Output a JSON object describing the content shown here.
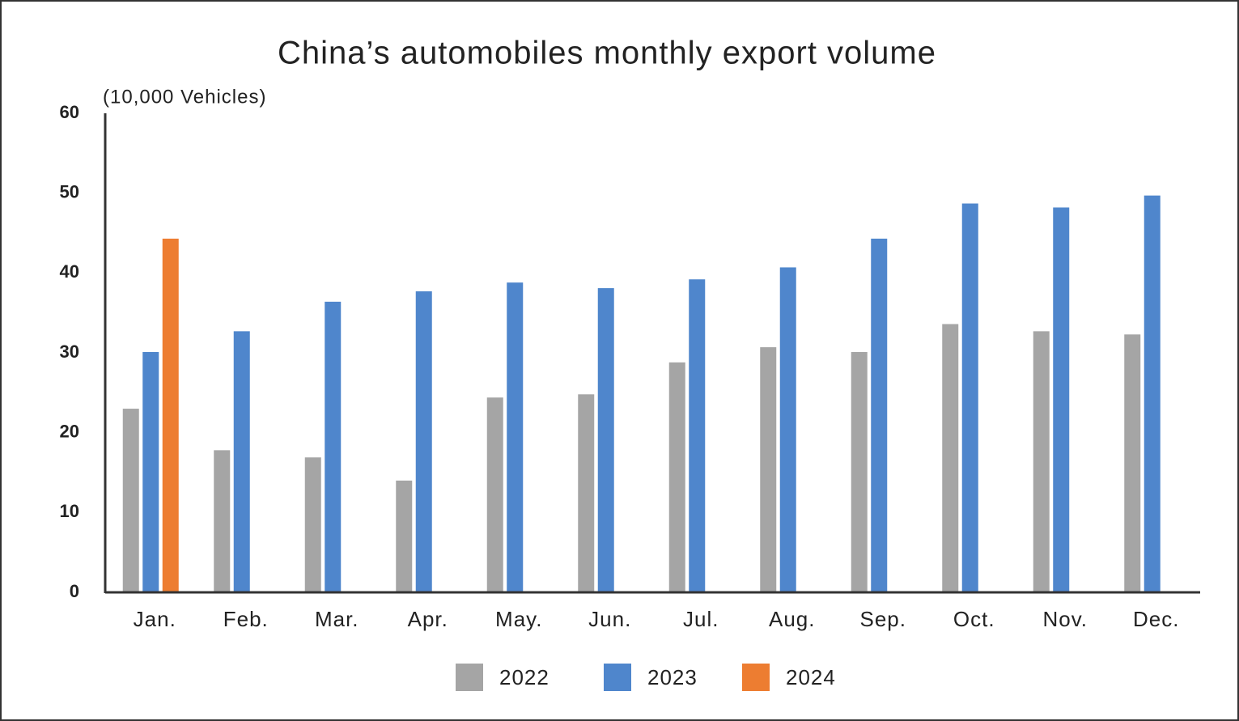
{
  "chart_data": {
    "type": "bar",
    "title": "China’s automobiles monthly export volume",
    "y_label": "(10,000 Vehicles)",
    "categories": [
      "Jan.",
      "Feb.",
      "Mar.",
      "Apr.",
      "May.",
      "Jun.",
      "Jul.",
      "Aug.",
      "Sep.",
      "Oct.",
      "Nov.",
      "Dec."
    ],
    "series": [
      {
        "name": "2022",
        "color": "#a5a5a5",
        "values": [
          23.0,
          17.8,
          16.9,
          14.0,
          24.4,
          24.8,
          28.8,
          30.7,
          30.1,
          33.6,
          32.7,
          32.3
        ]
      },
      {
        "name": "2023",
        "color": "#4f86cc",
        "values": [
          30.1,
          32.7,
          36.4,
          37.7,
          38.8,
          38.1,
          39.2,
          40.7,
          44.3,
          48.7,
          48.2,
          49.7
        ]
      },
      {
        "name": "2024",
        "color": "#ed7d31",
        "values": [
          44.3,
          null,
          null,
          null,
          null,
          null,
          null,
          null,
          null,
          null,
          null,
          null
        ]
      }
    ],
    "ylim": [
      0,
      60
    ],
    "yticks": [
      0,
      10,
      20,
      30,
      40,
      50,
      60
    ],
    "grid": false,
    "legend": "bottom"
  }
}
